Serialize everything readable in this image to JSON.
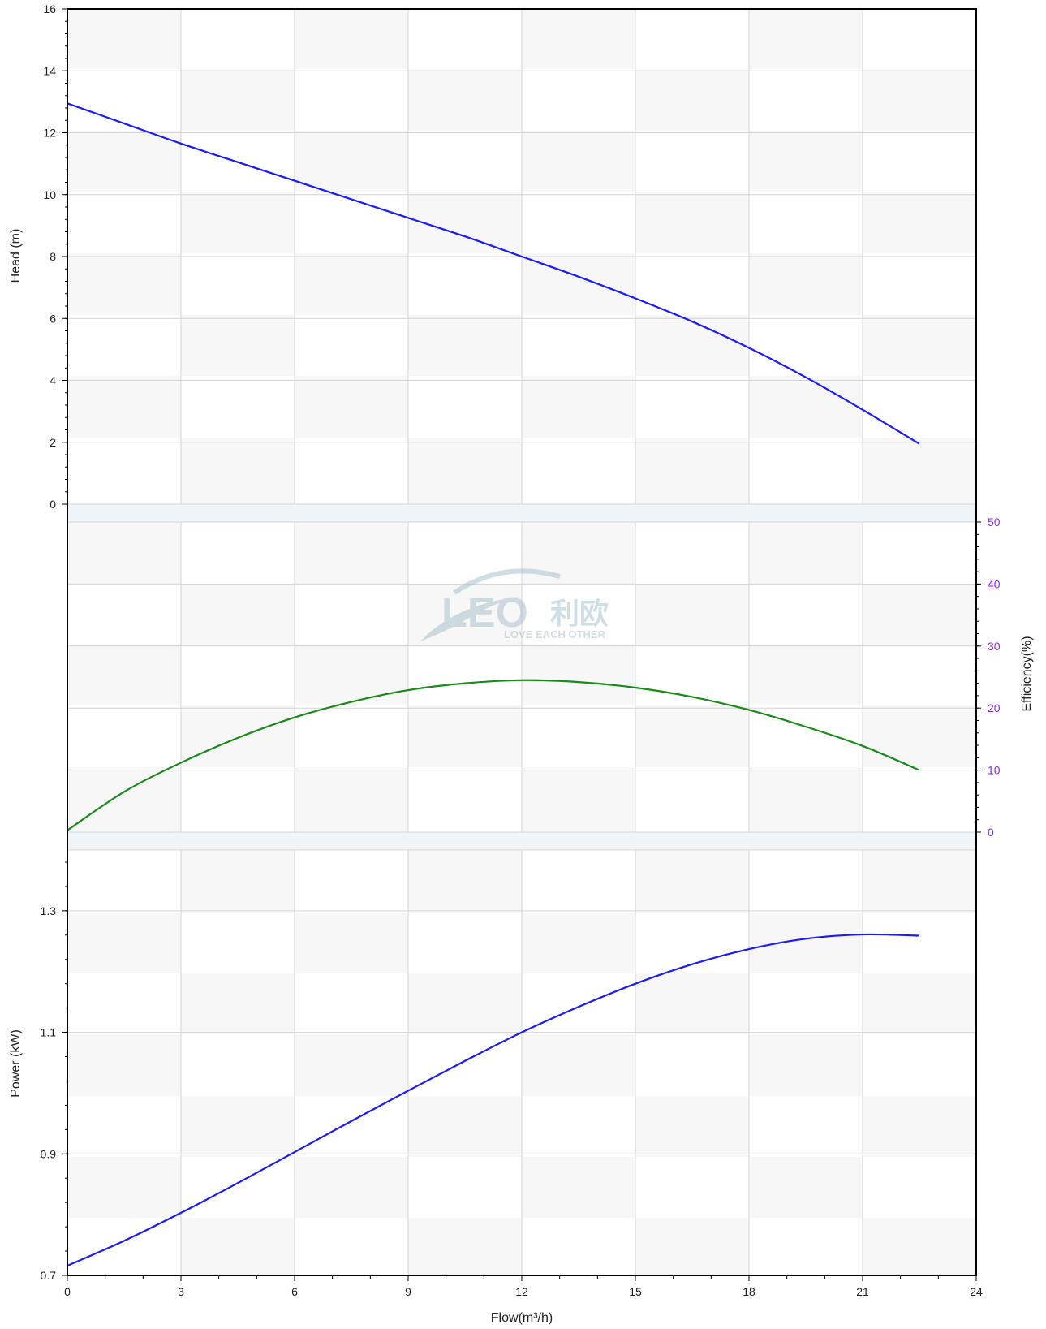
{
  "chart_data": [
    {
      "type": "line",
      "panel": "head",
      "ylabel": "Head (m)",
      "ylim": [
        0,
        16
      ],
      "yticks": [
        0,
        2,
        4,
        6,
        8,
        10,
        12,
        14,
        16
      ],
      "xlim": [
        0,
        24
      ],
      "series": [
        {
          "color": "#1a1aff",
          "x": [
            0,
            1.5,
            3,
            4.5,
            6,
            7.5,
            9,
            10.5,
            12,
            13.5,
            15,
            16.5,
            18,
            19.5,
            21,
            22.5
          ],
          "y": [
            12.95,
            12.3,
            11.65,
            11.05,
            10.45,
            9.85,
            9.25,
            8.65,
            8.0,
            7.35,
            6.65,
            5.9,
            5.05,
            4.1,
            3.05,
            1.95
          ]
        }
      ]
    },
    {
      "type": "line",
      "panel": "efficiency",
      "ylabel": "Efficiency(%)",
      "ylim": [
        0,
        50
      ],
      "yticks": [
        0,
        10,
        20,
        30,
        40,
        50
      ],
      "xlim": [
        0,
        24
      ],
      "series": [
        {
          "color": "#1a8a1a",
          "x": [
            0,
            1.5,
            3,
            4.5,
            6,
            7.5,
            9,
            10.5,
            12,
            13.5,
            15,
            16.5,
            18,
            19.5,
            21,
            22.5
          ],
          "y": [
            0.3,
            6.5,
            11.2,
            15.2,
            18.5,
            21.0,
            22.9,
            24.0,
            24.5,
            24.2,
            23.3,
            21.8,
            19.7,
            17.0,
            13.9,
            10.0
          ]
        }
      ]
    },
    {
      "type": "line",
      "panel": "power",
      "ylabel": "Power (kW)",
      "xlabel": "Flow(m³/h)",
      "ylim": [
        0.7,
        1.4
      ],
      "yticks": [
        0.7,
        0.9,
        1.1,
        1.3
      ],
      "xlim": [
        0,
        24
      ],
      "xticks": [
        0,
        3,
        6,
        9,
        12,
        15,
        18,
        21,
        24
      ],
      "series": [
        {
          "color": "#1a1aff",
          "x": [
            0,
            1.5,
            3,
            4.5,
            6,
            7.5,
            9,
            10.5,
            12,
            13.5,
            15,
            16.5,
            18,
            19.5,
            21,
            22.5
          ],
          "y": [
            0.716,
            0.757,
            0.803,
            0.852,
            0.903,
            0.954,
            1.004,
            1.053,
            1.1,
            1.142,
            1.18,
            1.212,
            1.237,
            1.254,
            1.261,
            1.259
          ]
        }
      ]
    }
  ],
  "logo": {
    "text": "LEO",
    "chinese": "利欧",
    "slogan": "LOVE EACH OTHER",
    "color": "#a9c3cf"
  }
}
